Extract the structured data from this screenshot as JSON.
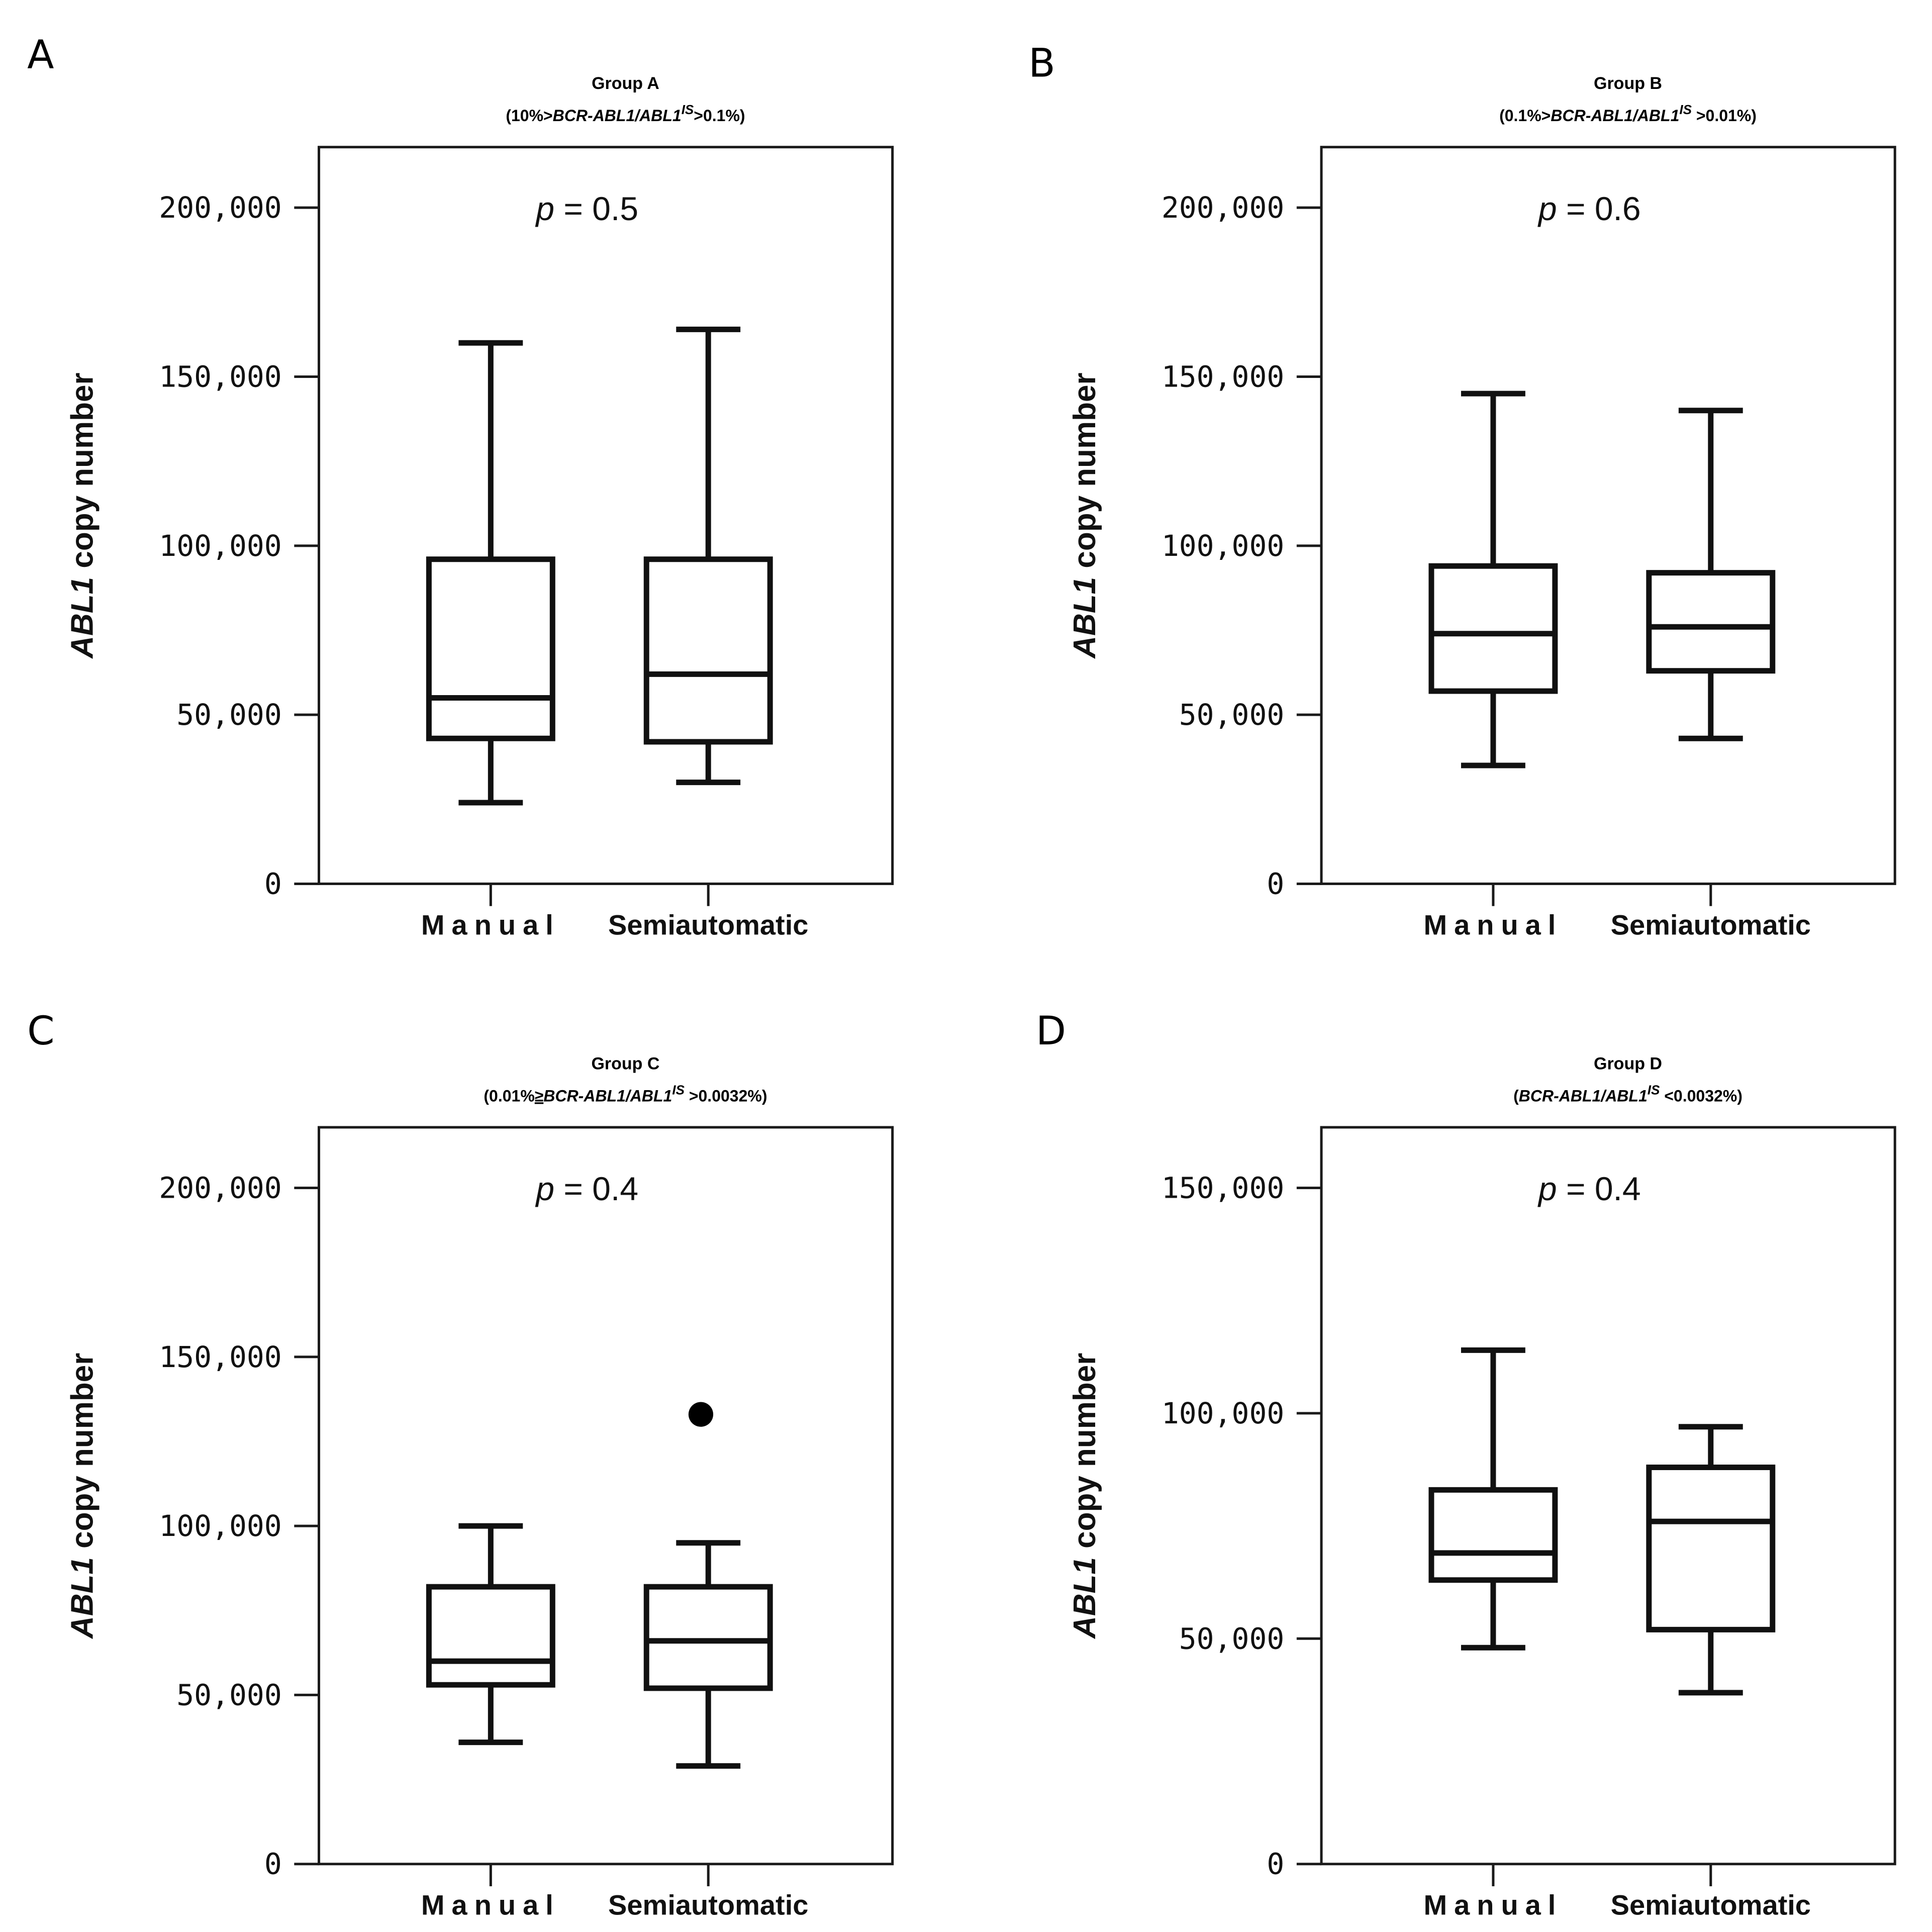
{
  "figure": {
    "panels": [
      {
        "letter": "A",
        "group_title": "Group A",
        "subtitle_pre": "(10%>",
        "subtitle_ital": "BCR-ABL1/ABL1",
        "subtitle_sup": "IS",
        "subtitle_post": ">0.1%)",
        "p_label": "p",
        "p_text": " = 0.5",
        "ylabel_gene": "ABL1",
        "ylabel_text": " copy number"
      },
      {
        "letter": "B",
        "group_title": "Group B",
        "subtitle_pre": "(0.1%>",
        "subtitle_ital": "BCR-ABL1/ABL1",
        "subtitle_sup": "IS",
        "subtitle_post": " >0.01%)",
        "p_label": "p",
        "p_text": " = 0.6",
        "ylabel_gene": "ABL1",
        "ylabel_text": " copy number"
      },
      {
        "letter": "C",
        "group_title": "Group C",
        "subtitle_pre": "(0.01%",
        "subtitle_under": "≥",
        "subtitle_ital": "BCR-ABL1/ABL1",
        "subtitle_sup": "IS",
        "subtitle_post": " >0.0032%)",
        "p_label": "p",
        "p_text": " = 0.4",
        "ylabel_gene": "ABL1",
        "ylabel_text": " copy number"
      },
      {
        "letter": "D",
        "group_title": "Group D",
        "subtitle_pre": "(",
        "subtitle_ital": "BCR-ABL1/ABL1",
        "subtitle_sup": "IS",
        "subtitle_post": " <0.0032%)",
        "p_label": "p",
        "p_text": " = 0.4",
        "ylabel_gene": "ABL1",
        "ylabel_text": " copy number"
      }
    ]
  },
  "chart_data": [
    {
      "type": "box",
      "title": "Group A",
      "ylabel": "ABL1 copy number",
      "categories": [
        "Manual",
        "Semiautomatic"
      ],
      "ylim": [
        0,
        218000
      ],
      "yticks": [
        0,
        50000,
        100000,
        150000,
        200000
      ],
      "ytick_labels": [
        "0",
        "50,000",
        "100,000",
        "150,000",
        "200,000"
      ],
      "boxes": [
        {
          "min": 24000,
          "q1": 43000,
          "median": 55000,
          "q3": 96000,
          "max": 160000,
          "outliers": []
        },
        {
          "min": 30000,
          "q1": 42000,
          "median": 62000,
          "q3": 96000,
          "max": 164000,
          "outliers": []
        }
      ]
    },
    {
      "type": "box",
      "title": "Group B",
      "ylabel": "ABL1 copy number",
      "categories": [
        "Manual",
        "Semiautomatic"
      ],
      "ylim": [
        0,
        218000
      ],
      "yticks": [
        0,
        50000,
        100000,
        150000,
        200000
      ],
      "ytick_labels": [
        "0",
        "50,000",
        "100,000",
        "150,000",
        "200,000"
      ],
      "boxes": [
        {
          "min": 35000,
          "q1": 57000,
          "median": 74000,
          "q3": 94000,
          "max": 145000,
          "outliers": []
        },
        {
          "min": 43000,
          "q1": 63000,
          "median": 76000,
          "q3": 92000,
          "max": 140000,
          "outliers": []
        }
      ]
    },
    {
      "type": "box",
      "title": "Group C",
      "ylabel": "ABL1 copy number",
      "categories": [
        "Manual",
        "Semiautomatic"
      ],
      "ylim": [
        0,
        218000
      ],
      "yticks": [
        0,
        50000,
        100000,
        150000,
        200000
      ],
      "ytick_labels": [
        "0",
        "50,000",
        "100,000",
        "150,000",
        "200,000"
      ],
      "boxes": [
        {
          "min": 36000,
          "q1": 53000,
          "median": 60000,
          "q3": 82000,
          "max": 100000,
          "outliers": []
        },
        {
          "min": 29000,
          "q1": 52000,
          "median": 66000,
          "q3": 82000,
          "max": 95000,
          "outliers": [
            133000
          ]
        }
      ]
    },
    {
      "type": "box",
      "title": "Group D",
      "ylabel": "ABL1 copy number",
      "categories": [
        "Manual",
        "Semiautomatic"
      ],
      "ylim": [
        0,
        165000
      ],
      "yticks": [
        0,
        50000,
        100000,
        150000
      ],
      "ytick_labels": [
        "0",
        "50,000",
        "100,000",
        "150,000"
      ],
      "boxes": [
        {
          "min": 48000,
          "q1": 63000,
          "median": 69000,
          "q3": 83000,
          "max": 114000,
          "outliers": []
        },
        {
          "min": 38000,
          "q1": 52000,
          "median": 76000,
          "q3": 88000,
          "max": 97000,
          "outliers": []
        }
      ]
    }
  ]
}
